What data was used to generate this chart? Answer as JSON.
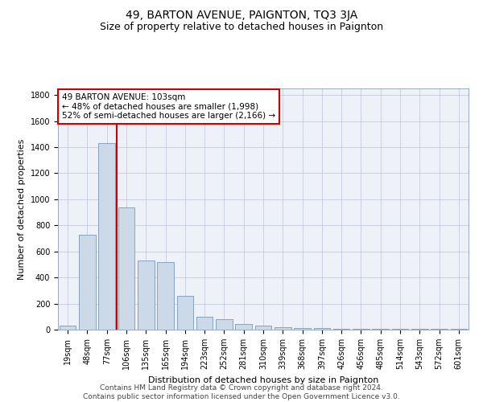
{
  "title": "49, BARTON AVENUE, PAIGNTON, TQ3 3JA",
  "subtitle": "Size of property relative to detached houses in Paignton",
  "xlabel": "Distribution of detached houses by size in Paignton",
  "ylabel": "Number of detached properties",
  "categories": [
    "19sqm",
    "48sqm",
    "77sqm",
    "106sqm",
    "135sqm",
    "165sqm",
    "194sqm",
    "223sqm",
    "252sqm",
    "281sqm",
    "310sqm",
    "339sqm",
    "368sqm",
    "397sqm",
    "426sqm",
    "456sqm",
    "485sqm",
    "514sqm",
    "543sqm",
    "572sqm",
    "601sqm"
  ],
  "values": [
    30,
    730,
    1430,
    940,
    530,
    520,
    260,
    100,
    80,
    42,
    28,
    18,
    12,
    10,
    8,
    6,
    5,
    5,
    4,
    4,
    4
  ],
  "bar_color": "#ccd9e8",
  "bar_edge_color": "#7799bb",
  "annotation_text_line1": "49 BARTON AVENUE: 103sqm",
  "annotation_text_line2": "← 48% of detached houses are smaller (1,998)",
  "annotation_text_line3": "52% of semi-detached houses are larger (2,166) →",
  "annotation_box_facecolor": "#ffffff",
  "annotation_box_edgecolor": "#cc0000",
  "vline_color": "#cc0000",
  "vline_x_index": 3,
  "grid_color": "#b0b8d0",
  "background_color": "#eef2f8",
  "ylim": [
    0,
    1850
  ],
  "yticks": [
    0,
    200,
    400,
    600,
    800,
    1000,
    1200,
    1400,
    1600,
    1800
  ],
  "footer_line1": "Contains HM Land Registry data © Crown copyright and database right 2024.",
  "footer_line2": "Contains public sector information licensed under the Open Government Licence v3.0.",
  "title_fontsize": 10,
  "subtitle_fontsize": 9,
  "axis_label_fontsize": 8,
  "tick_fontsize": 7,
  "annotation_fontsize": 7.5,
  "footer_fontsize": 6.5
}
